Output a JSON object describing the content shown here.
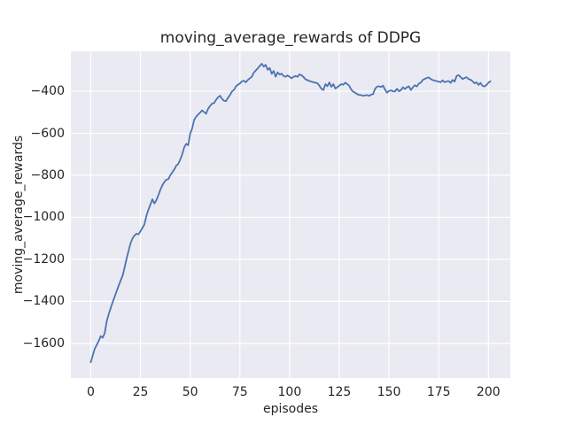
{
  "figure": {
    "background": "#ffffff",
    "text_color": "#262626"
  },
  "chart_data": {
    "type": "line",
    "title": "moving_average_rewards of DDPG",
    "xlabel": "episodes",
    "ylabel": "moving_average_rewards",
    "xlim": [
      -10,
      211
    ],
    "ylim": [
      -1765,
      -210
    ],
    "xticks": [
      0,
      25,
      50,
      75,
      100,
      125,
      150,
      175,
      200
    ],
    "yticks": [
      -1600,
      -1400,
      -1200,
      -1000,
      -800,
      -600,
      -400
    ],
    "grid": true,
    "grid_color": "#ffffff",
    "plot_background": "#eaeaf2",
    "legend": null,
    "series": [
      {
        "name": "moving_average_rewards",
        "color": "#4c72b0",
        "points": [
          [
            0,
            -1690
          ],
          [
            1,
            -1657
          ],
          [
            2,
            -1626
          ],
          [
            3,
            -1607
          ],
          [
            4,
            -1589
          ],
          [
            5,
            -1565
          ],
          [
            6,
            -1573
          ],
          [
            7,
            -1551
          ],
          [
            8,
            -1496
          ],
          [
            9,
            -1462
          ],
          [
            10,
            -1432
          ],
          [
            11,
            -1405
          ],
          [
            12,
            -1378
          ],
          [
            13,
            -1352
          ],
          [
            14,
            -1326
          ],
          [
            15,
            -1301
          ],
          [
            16,
            -1278
          ],
          [
            17,
            -1240
          ],
          [
            18,
            -1198
          ],
          [
            19,
            -1160
          ],
          [
            20,
            -1124
          ],
          [
            21,
            -1100
          ],
          [
            22,
            -1086
          ],
          [
            23,
            -1078
          ],
          [
            24,
            -1081
          ],
          [
            25,
            -1066
          ],
          [
            26,
            -1050
          ],
          [
            27,
            -1034
          ],
          [
            28,
            -992
          ],
          [
            29,
            -964
          ],
          [
            30,
            -939
          ],
          [
            31,
            -914
          ],
          [
            32,
            -934
          ],
          [
            33,
            -919
          ],
          [
            34,
            -894
          ],
          [
            35,
            -869
          ],
          [
            36,
            -848
          ],
          [
            37,
            -832
          ],
          [
            38,
            -821
          ],
          [
            39,
            -818
          ],
          [
            40,
            -800
          ],
          [
            41,
            -786
          ],
          [
            42,
            -772
          ],
          [
            43,
            -754
          ],
          [
            44,
            -746
          ],
          [
            45,
            -725
          ],
          [
            46,
            -700
          ],
          [
            47,
            -667
          ],
          [
            48,
            -650
          ],
          [
            49,
            -657
          ],
          [
            50,
            -601
          ],
          [
            51,
            -577
          ],
          [
            52,
            -537
          ],
          [
            53,
            -521
          ],
          [
            54,
            -511
          ],
          [
            55,
            -501
          ],
          [
            56,
            -491
          ],
          [
            57,
            -499
          ],
          [
            58,
            -507
          ],
          [
            59,
            -483
          ],
          [
            60,
            -470
          ],
          [
            61,
            -459
          ],
          [
            62,
            -456
          ],
          [
            63,
            -441
          ],
          [
            64,
            -429
          ],
          [
            65,
            -421
          ],
          [
            66,
            -436
          ],
          [
            67,
            -445
          ],
          [
            68,
            -447
          ],
          [
            69,
            -431
          ],
          [
            70,
            -419
          ],
          [
            71,
            -401
          ],
          [
            72,
            -394
          ],
          [
            73,
            -377
          ],
          [
            74,
            -369
          ],
          [
            75,
            -363
          ],
          [
            76,
            -353
          ],
          [
            77,
            -350
          ],
          [
            78,
            -357
          ],
          [
            79,
            -346
          ],
          [
            80,
            -338
          ],
          [
            81,
            -331
          ],
          [
            82,
            -311
          ],
          [
            83,
            -301
          ],
          [
            84,
            -291
          ],
          [
            85,
            -279
          ],
          [
            86,
            -269
          ],
          [
            87,
            -283
          ],
          [
            88,
            -274
          ],
          [
            89,
            -298
          ],
          [
            90,
            -289
          ],
          [
            91,
            -317
          ],
          [
            92,
            -303
          ],
          [
            93,
            -331
          ],
          [
            94,
            -310
          ],
          [
            95,
            -321
          ],
          [
            96,
            -316
          ],
          [
            97,
            -327
          ],
          [
            98,
            -331
          ],
          [
            99,
            -324
          ],
          [
            100,
            -331
          ],
          [
            101,
            -338
          ],
          [
            102,
            -331
          ],
          [
            103,
            -327
          ],
          [
            104,
            -331
          ],
          [
            105,
            -319
          ],
          [
            106,
            -324
          ],
          [
            107,
            -332
          ],
          [
            108,
            -343
          ],
          [
            109,
            -347
          ],
          [
            110,
            -351
          ],
          [
            111,
            -354
          ],
          [
            112,
            -357
          ],
          [
            113,
            -359
          ],
          [
            114,
            -362
          ],
          [
            115,
            -373
          ],
          [
            116,
            -388
          ],
          [
            117,
            -394
          ],
          [
            118,
            -366
          ],
          [
            119,
            -376
          ],
          [
            120,
            -358
          ],
          [
            121,
            -379
          ],
          [
            122,
            -366
          ],
          [
            123,
            -387
          ],
          [
            124,
            -381
          ],
          [
            125,
            -373
          ],
          [
            126,
            -366
          ],
          [
            127,
            -369
          ],
          [
            128,
            -359
          ],
          [
            129,
            -366
          ],
          [
            130,
            -374
          ],
          [
            131,
            -392
          ],
          [
            132,
            -402
          ],
          [
            133,
            -407
          ],
          [
            134,
            -414
          ],
          [
            135,
            -417
          ],
          [
            136,
            -418
          ],
          [
            137,
            -422
          ],
          [
            138,
            -419
          ],
          [
            139,
            -418
          ],
          [
            140,
            -422
          ],
          [
            141,
            -416
          ],
          [
            142,
            -414
          ],
          [
            143,
            -388
          ],
          [
            144,
            -378
          ],
          [
            145,
            -376
          ],
          [
            146,
            -380
          ],
          [
            147,
            -373
          ],
          [
            148,
            -392
          ],
          [
            149,
            -407
          ],
          [
            150,
            -398
          ],
          [
            151,
            -396
          ],
          [
            152,
            -400
          ],
          [
            153,
            -401
          ],
          [
            154,
            -388
          ],
          [
            155,
            -400
          ],
          [
            156,
            -394
          ],
          [
            157,
            -381
          ],
          [
            158,
            -389
          ],
          [
            159,
            -381
          ],
          [
            160,
            -376
          ],
          [
            161,
            -394
          ],
          [
            162,
            -381
          ],
          [
            163,
            -371
          ],
          [
            164,
            -377
          ],
          [
            165,
            -363
          ],
          [
            166,
            -359
          ],
          [
            167,
            -346
          ],
          [
            168,
            -341
          ],
          [
            169,
            -337
          ],
          [
            170,
            -334
          ],
          [
            171,
            -342
          ],
          [
            172,
            -347
          ],
          [
            173,
            -349
          ],
          [
            174,
            -352
          ],
          [
            175,
            -354
          ],
          [
            176,
            -357
          ],
          [
            177,
            -348
          ],
          [
            178,
            -357
          ],
          [
            179,
            -353
          ],
          [
            180,
            -351
          ],
          [
            181,
            -360
          ],
          [
            182,
            -346
          ],
          [
            183,
            -354
          ],
          [
            184,
            -327
          ],
          [
            185,
            -323
          ],
          [
            186,
            -332
          ],
          [
            187,
            -342
          ],
          [
            188,
            -337
          ],
          [
            189,
            -333
          ],
          [
            190,
            -342
          ],
          [
            191,
            -345
          ],
          [
            192,
            -352
          ],
          [
            193,
            -362
          ],
          [
            194,
            -357
          ],
          [
            195,
            -370
          ],
          [
            196,
            -360
          ],
          [
            197,
            -374
          ],
          [
            198,
            -377
          ],
          [
            199,
            -370
          ],
          [
            200,
            -359
          ],
          [
            201,
            -353
          ]
        ]
      }
    ]
  }
}
